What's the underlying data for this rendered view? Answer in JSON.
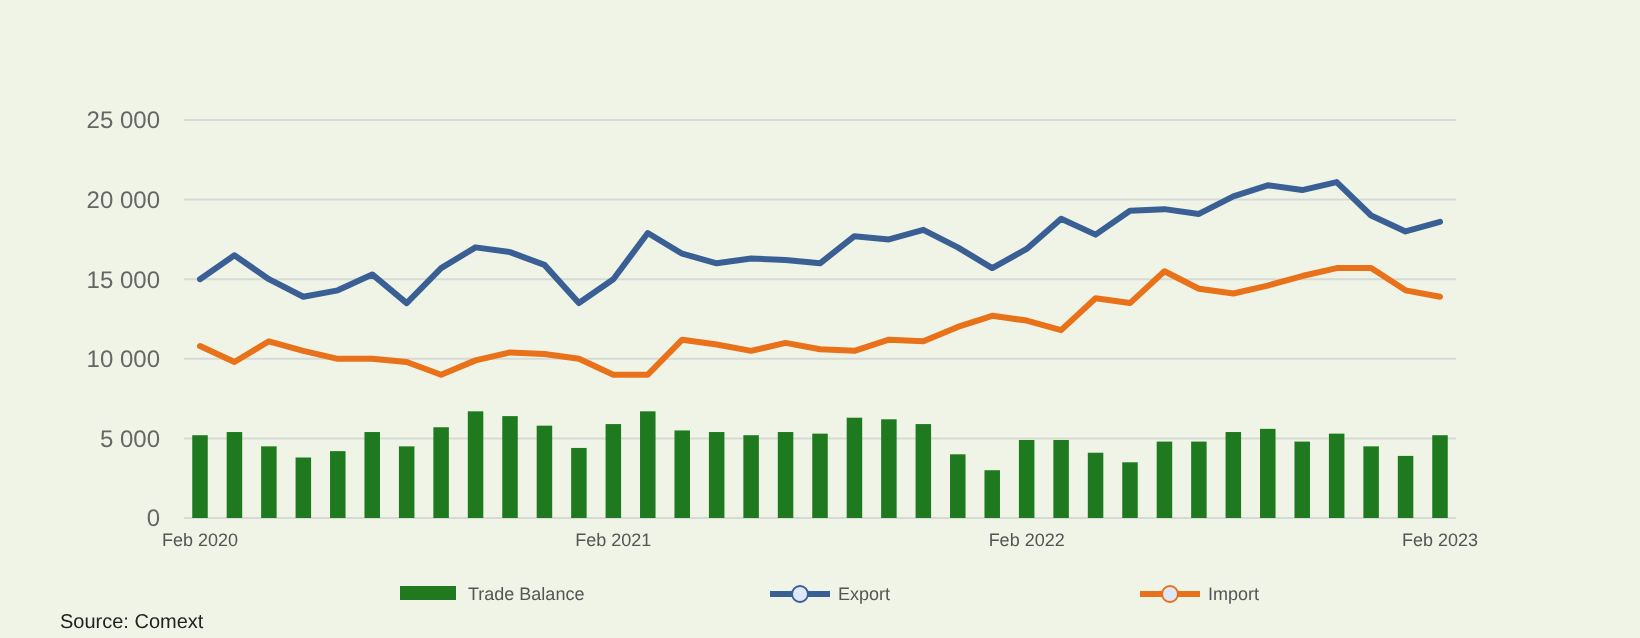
{
  "chart_data": {
    "type": "bar",
    "categories": [
      "Feb 2020",
      null,
      null,
      null,
      null,
      null,
      null,
      null,
      null,
      null,
      null,
      null,
      "Feb 2021",
      null,
      null,
      null,
      null,
      null,
      null,
      null,
      null,
      null,
      null,
      null,
      "Feb 2022",
      null,
      null,
      null,
      null,
      null,
      null,
      null,
      null,
      null,
      null,
      null,
      "Feb 2023"
    ],
    "series": [
      {
        "name": "Trade Balance",
        "color": "#1f7a1f",
        "values": [
          5200,
          5400,
          4500,
          3800,
          4200,
          5400,
          4500,
          5700,
          6700,
          6400,
          5800,
          4400,
          5900,
          6700,
          5500,
          5400,
          5200,
          5400,
          5300,
          6300,
          6200,
          5900,
          4000,
          3000,
          4900,
          4900,
          4100,
          3500,
          4800,
          4800,
          5400,
          5600,
          4800,
          5300,
          4500,
          3900,
          5200
        ]
      },
      {
        "name": "Export",
        "type": "line",
        "color": "#3a5f94",
        "values": [
          15000,
          16500,
          15000,
          13900,
          14300,
          15300,
          13500,
          15700,
          17000,
          16700,
          15900,
          13500,
          15000,
          17900,
          16600,
          16000,
          16300,
          16200,
          16000,
          17700,
          17500,
          18100,
          17000,
          15700,
          16900,
          18800,
          17800,
          19300,
          19400,
          19100,
          20200,
          20900,
          20600,
          21100,
          19000,
          18000,
          18600
        ]
      },
      {
        "name": "Import",
        "type": "line",
        "color": "#e8711a",
        "values": [
          10800,
          9800,
          11100,
          10500,
          10000,
          10000,
          9800,
          9000,
          9900,
          10400,
          10300,
          10000,
          9000,
          9000,
          11200,
          10900,
          10500,
          11000,
          10600,
          10500,
          11200,
          11100,
          12000,
          12700,
          12400,
          11800,
          13800,
          13500,
          15500,
          14400,
          14100,
          14600,
          15200,
          15700,
          15700,
          14300,
          13900
        ]
      }
    ],
    "ylim": [
      0,
      25000
    ],
    "yticks": [
      0,
      {
        "value": 5000,
        "label": "5 000"
      },
      {
        "value": 10000,
        "label": "10 000"
      },
      {
        "value": 15000,
        "label": "15 000"
      },
      {
        "value": 20000,
        "label": "20 000"
      },
      {
        "value": 25000,
        "label": "25 000"
      }
    ],
    "grid": "y",
    "legend": "bottom",
    "annotations": [
      "Source: Comext"
    ]
  }
}
